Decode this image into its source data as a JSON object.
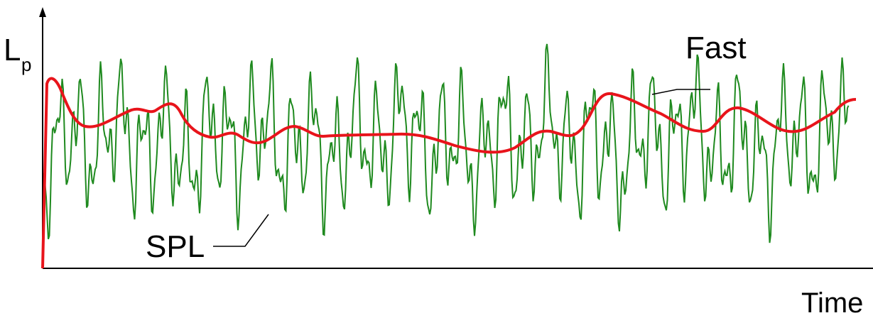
{
  "axes": {
    "y_label": {
      "main": "L",
      "subscript": "p"
    },
    "x_label": "Time"
  },
  "curves": {
    "fast": {
      "label": "Fast"
    },
    "spl": {
      "label": "SPL"
    }
  }
}
